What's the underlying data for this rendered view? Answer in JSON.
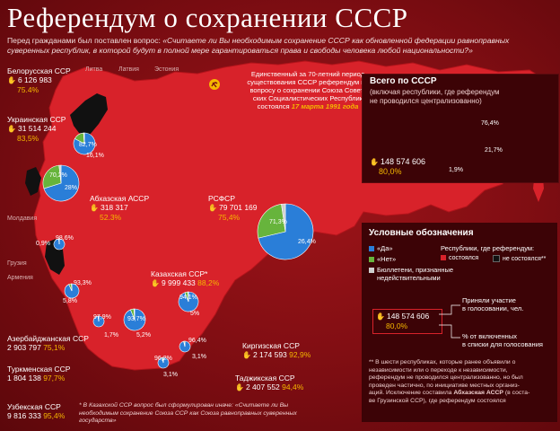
{
  "title": "Референдум о сохранении СССР",
  "subtitle_plain": "Перед гражданами был поставлен вопрос: ",
  "subtitle_question": "«Считаете ли Вы необходимым сохранение СССР как обновленной федерации равноправных суверенных республик, в которой будут в полной мере гарантироваться права и свободы человека любой национальности?»",
  "intro_line1": "Единственный за 70-летний период",
  "intro_line2": "существования СССР референдум по",
  "intro_line3": "вопросу о сохранении Союза Совет-",
  "intro_line4": "ских Социалистических Республик",
  "intro_line5a": "состоялся ",
  "intro_line5b": "17 марта 1991 года",
  "baltic": {
    "lithuania": "Литва",
    "latvia": "Латвия",
    "estonia": "Эстония"
  },
  "moldova": "Молдавия",
  "georgia": "Грузия",
  "armenia": "Армения",
  "republics": {
    "belarus": {
      "name": "Белорусская ССР",
      "num": "6 126 983",
      "pct": "75.4%",
      "yes": "82,7%",
      "no": "16,1%"
    },
    "ukraine": {
      "name": "Украинская ССР",
      "num": "31 514 244",
      "pct": "83,5%",
      "yes": "70,2%",
      "no": "28%"
    },
    "abkhazia": {
      "name": "Абхазская АССР",
      "num": "318 317",
      "pct": "52.3%",
      "yes": "98,6%",
      "no": "0,9%"
    },
    "rsfsr": {
      "name": "РСФСР",
      "num": "79 701 169",
      "pct": "75,4%",
      "yes": "71,3%",
      "no": "26,4%"
    },
    "kazakh": {
      "name": "Казахская ССР*",
      "num": "9 999 433",
      "pct": "88,2%",
      "yes": "94,1%",
      "no": "5%"
    },
    "azer": {
      "name": "Азербайджанская ССР",
      "num": "2 903 797",
      "pct": "75,1%",
      "yes": "93,3%",
      "no": "5,8%"
    },
    "turkmen": {
      "name": "Туркменская ССР",
      "num": "1 804 138",
      "pct": "97,7%",
      "yes": "97,9%",
      "no": "1,7%"
    },
    "uzbek": {
      "name": "Узбекская ССР",
      "num": "9 816 333",
      "pct": "95,4%",
      "yes": "93,7%",
      "no": "5,2%"
    },
    "kirgiz": {
      "name": "Киргизская ССР",
      "num": "2 174 593",
      "pct": "92,9%",
      "yes": "96,2%",
      "no": "3,1%"
    },
    "tajik": {
      "name": "Таджикская ССР",
      "num": "2 407 552",
      "pct": "94,4%",
      "yes": "96,4%",
      "no": "3,1%"
    }
  },
  "total": {
    "header": "Всего по СССР",
    "sub1": "(включая республики, где референдум",
    "sub2": "не проводился централизованно)",
    "num": "148 574 606",
    "pct": "80,0%",
    "yes": "76,4%",
    "no": "21,7%",
    "other": "1,9%"
  },
  "legend": {
    "header": "Условные обозначения",
    "yes": "«Да»",
    "no": "«Нет»",
    "ballots1": "Бюллетени, признанные",
    "ballots2": "недействительными",
    "held_title": "Республики, где референдум:",
    "held": "состоялся",
    "not_held": "не состоялся**",
    "sample_num": "148 574 606",
    "sample_pct": "80,0%",
    "participated1": "Приняли участие",
    "participated2": "в голосовании, чел.",
    "share1": "% от включенных",
    "share2": "в списки для голосования"
  },
  "footnote_star": "* В Казахской ССР вопрос был сформулирован иначе: «Считаете ли Вы необходимым сохранение Союза ССР как Союза равноправных суверенных государств»",
  "footnote_dstar": {
    "l1": "** В шести республиках, которые ранее объявили о",
    "l2": "независимости или о переходе к независимости,",
    "l3": "референдум не проводился централизованно, но был",
    "l4": "проведен частично, по инициативе местных организ-",
    "l5": "аций. Исключение составила ",
    "l5b": "Абхазская АССР",
    "l5c": " (в соста-",
    "l6": "ве Грузинской ССР), где референдум состоялся"
  },
  "colors": {
    "yes": "#2a7ed8",
    "no": "#67b43c",
    "map": "#d8222a",
    "accent": "#f5b800",
    "not_held": "#111111"
  },
  "chart_data": {
    "type": "pie",
    "title": "Референдум о сохранении СССР",
    "series": [
      {
        "name": "Всего по СССР",
        "slices": [
          {
            "label": "«Да»",
            "value": 76.4
          },
          {
            "label": "«Нет»",
            "value": 21.7
          },
          {
            "label": "other",
            "value": 1.9
          }
        ],
        "participants": "148 574 606",
        "turnout": "80,0%"
      },
      {
        "name": "РСФСР",
        "slices": [
          {
            "label": "«Да»",
            "value": 71.3
          },
          {
            "label": "«Нет»",
            "value": 26.4
          }
        ],
        "participants": "79 701 169",
        "turnout": "75,4%"
      },
      {
        "name": "Украинская ССР",
        "slices": [
          {
            "label": "«Да»",
            "value": 70.2
          },
          {
            "label": "«Нет»",
            "value": 28
          }
        ],
        "participants": "31 514 244",
        "turnout": "83,5%"
      },
      {
        "name": "Белорусская ССР",
        "slices": [
          {
            "label": "«Да»",
            "value": 82.7
          },
          {
            "label": "«Нет»",
            "value": 16.1
          }
        ],
        "participants": "6 126 983",
        "turnout": "75.4%"
      },
      {
        "name": "Абхазская АССР",
        "slices": [
          {
            "label": "«Да»",
            "value": 98.6
          },
          {
            "label": "«Нет»",
            "value": 0.9
          }
        ],
        "participants": "318 317",
        "turnout": "52.3%"
      },
      {
        "name": "Казахская ССР*",
        "slices": [
          {
            "label": "«Да»",
            "value": 94.1
          },
          {
            "label": "«Нет»",
            "value": 5
          }
        ],
        "participants": "9 999 433",
        "turnout": "88,2%"
      },
      {
        "name": "Азербайджанская ССР",
        "slices": [
          {
            "label": "«Да»",
            "value": 93.3
          },
          {
            "label": "«Нет»",
            "value": 5.8
          }
        ],
        "participants": "2 903 797",
        "turnout": "75,1%"
      },
      {
        "name": "Туркменская ССР",
        "slices": [
          {
            "label": "«Да»",
            "value": 97.9
          },
          {
            "label": "«Нет»",
            "value": 1.7
          }
        ],
        "participants": "1 804 138",
        "turnout": "97,7%"
      },
      {
        "name": "Узбекская ССР",
        "slices": [
          {
            "label": "«Да»",
            "value": 93.7
          },
          {
            "label": "«Нет»",
            "value": 5.2
          }
        ],
        "participants": "9 816 333",
        "turnout": "95,4%"
      },
      {
        "name": "Киргизская ССР",
        "slices": [
          {
            "label": "«Да»",
            "value": 96.2
          },
          {
            "label": "«Нет»",
            "value": 3.1
          }
        ],
        "participants": "2 174 593",
        "turnout": "92,9%"
      },
      {
        "name": "Таджикская ССР",
        "slices": [
          {
            "label": "«Да»",
            "value": 96.4
          },
          {
            "label": "«Нет»",
            "value": 3.1
          }
        ],
        "participants": "2 407 552",
        "turnout": "94,4%"
      }
    ]
  }
}
